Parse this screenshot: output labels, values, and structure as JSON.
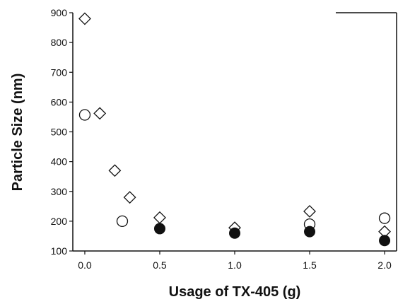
{
  "chart_data": {
    "type": "scatter",
    "xlabel": "Usage of TX-405 (g)",
    "ylabel": "Particle Size (nm)",
    "xlim": [
      -0.08,
      2.08
    ],
    "ylim": [
      100,
      900
    ],
    "x_ticks": [
      0.0,
      0.5,
      1.0,
      1.5,
      2.0
    ],
    "x_tick_labels": [
      "0.0",
      "0.5",
      "1.0",
      "1.5",
      "2.0"
    ],
    "y_ticks": [
      100,
      200,
      300,
      400,
      500,
      600,
      700,
      800,
      900
    ],
    "y_tick_labels": [
      "100",
      "200",
      "300",
      "400",
      "500",
      "600",
      "700",
      "800",
      "900"
    ],
    "grid": false,
    "series": [
      {
        "marker": "diamond-open",
        "color": "#111111",
        "x": [
          0.0,
          0.1,
          0.2,
          0.3,
          0.5,
          1.0,
          1.5,
          2.0
        ],
        "y": [
          880,
          562,
          370,
          280,
          212,
          178,
          233,
          165
        ]
      },
      {
        "marker": "circle-open",
        "color": "#111111",
        "x": [
          0.0,
          0.25,
          1.5,
          2.0
        ],
        "y": [
          557,
          200,
          190,
          210
        ]
      },
      {
        "marker": "circle-filled",
        "color": "#111111",
        "x": [
          0.5,
          1.0,
          1.5,
          2.0
        ],
        "y": [
          175,
          160,
          165,
          135
        ]
      }
    ]
  }
}
